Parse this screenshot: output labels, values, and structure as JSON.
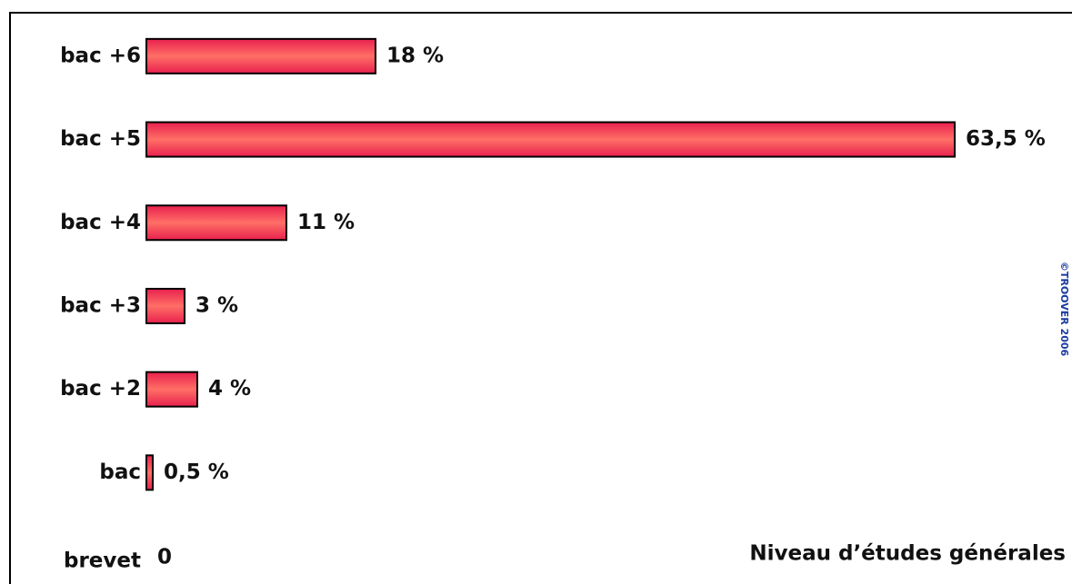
{
  "chart_data": {
    "type": "bar",
    "orientation": "horizontal",
    "annotation": "Niveau d’études générales",
    "watermark": "©TROOVER 2006",
    "categories": [
      "bac +6",
      "bac +5",
      "bac +4",
      "bac +3",
      "bac +2",
      "bac",
      "brevet"
    ],
    "values": [
      18,
      63.5,
      11,
      3,
      4,
      0.5,
      0
    ],
    "value_labels": [
      "18 %",
      "63,5 %",
      "11 %",
      "3 %",
      "4 %",
      "0,5 %",
      "0"
    ],
    "color": "#f0405a",
    "xlim": [
      0,
      70
    ]
  }
}
